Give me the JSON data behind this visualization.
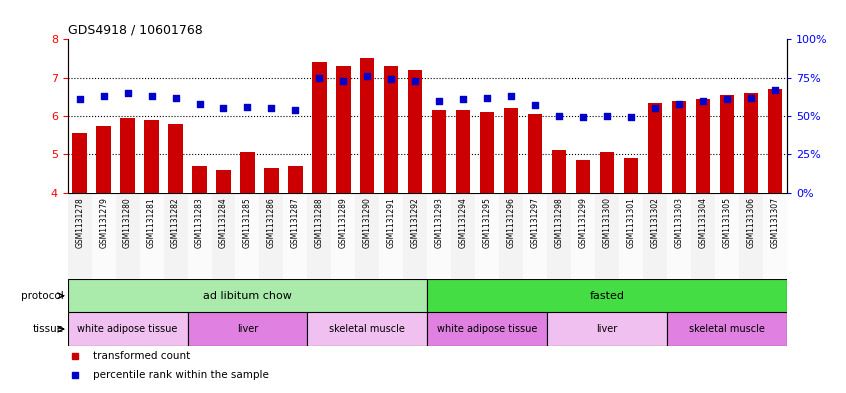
{
  "title": "GDS4918 / 10601768",
  "samples": [
    "GSM1131278",
    "GSM1131279",
    "GSM1131280",
    "GSM1131281",
    "GSM1131282",
    "GSM1131283",
    "GSM1131284",
    "GSM1131285",
    "GSM1131286",
    "GSM1131287",
    "GSM1131288",
    "GSM1131289",
    "GSM1131290",
    "GSM1131291",
    "GSM1131292",
    "GSM1131293",
    "GSM1131294",
    "GSM1131295",
    "GSM1131296",
    "GSM1131297",
    "GSM1131298",
    "GSM1131299",
    "GSM1131300",
    "GSM1131301",
    "GSM1131302",
    "GSM1131303",
    "GSM1131304",
    "GSM1131305",
    "GSM1131306",
    "GSM1131307"
  ],
  "bar_values": [
    5.55,
    5.75,
    5.95,
    5.9,
    5.8,
    4.7,
    4.6,
    5.05,
    4.65,
    4.7,
    7.4,
    7.3,
    7.5,
    7.3,
    7.2,
    6.15,
    6.15,
    6.1,
    6.2,
    6.05,
    5.1,
    4.85,
    5.05,
    4.9,
    6.35,
    6.4,
    6.45,
    6.55,
    6.6,
    6.7
  ],
  "percentile_values": [
    61,
    63,
    65,
    63,
    62,
    58,
    55,
    56,
    55,
    54,
    75,
    73,
    76,
    74,
    73,
    60,
    61,
    62,
    63,
    57,
    50,
    49,
    50,
    49,
    55,
    58,
    60,
    61,
    62,
    67
  ],
  "bar_color": "#cc0000",
  "dot_color": "#0000cc",
  "ylim_left": [
    4,
    8
  ],
  "ylim_right": [
    0,
    100
  ],
  "right_ticks": [
    0,
    25,
    50,
    75,
    100
  ],
  "right_tick_labels": [
    "0%",
    "25%",
    "50%",
    "75%",
    "100%"
  ],
  "left_ticks": [
    4,
    5,
    6,
    7,
    8
  ],
  "hline_values": [
    5,
    6,
    7
  ],
  "protocol_labels": [
    {
      "text": "ad libitum chow",
      "start": 0,
      "end": 15,
      "color": "#aaeaaa"
    },
    {
      "text": "fasted",
      "start": 15,
      "end": 30,
      "color": "#44dd44"
    }
  ],
  "tissue_labels": [
    {
      "text": "white adipose tissue",
      "start": 0,
      "end": 5,
      "color": "#f0c0f0"
    },
    {
      "text": "liver",
      "start": 5,
      "end": 10,
      "color": "#e080e0"
    },
    {
      "text": "skeletal muscle",
      "start": 10,
      "end": 15,
      "color": "#f0c0f0"
    },
    {
      "text": "white adipose tissue",
      "start": 15,
      "end": 20,
      "color": "#e080e0"
    },
    {
      "text": "liver",
      "start": 20,
      "end": 25,
      "color": "#f0c0f0"
    },
    {
      "text": "skeletal muscle",
      "start": 25,
      "end": 30,
      "color": "#e080e0"
    }
  ],
  "legend_items": [
    {
      "label": "transformed count",
      "color": "#cc0000"
    },
    {
      "label": "percentile rank within the sample",
      "color": "#0000cc"
    }
  ],
  "protocol_row_label": "protocol",
  "tissue_row_label": "tissue"
}
